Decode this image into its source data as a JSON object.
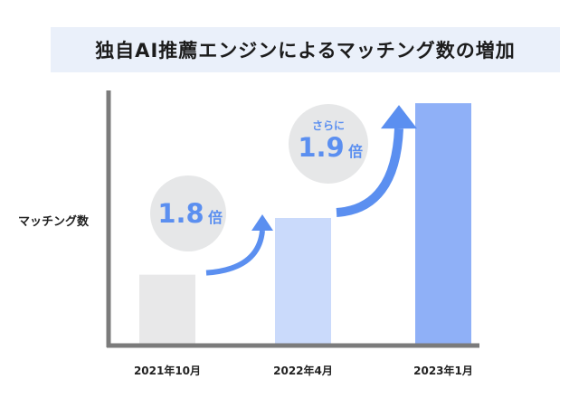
{
  "chart_data": {
    "type": "bar",
    "title": "独自AI推薦エンジンによるマッチング数の増加",
    "ylabel": "マッチング数",
    "xlabel": "",
    "categories": [
      "2021年10月",
      "2022年4月",
      "2023年1月"
    ],
    "values": [
      1.0,
      1.8,
      3.42
    ],
    "bar_colors": [
      "#e8e8e9",
      "#cadafb",
      "#8fb0f7"
    ],
    "ylim": [
      0,
      3.6
    ],
    "grid": false,
    "annotations": [
      {
        "from": 0,
        "to": 1,
        "prefix": "",
        "value": "1.8",
        "unit": "倍"
      },
      {
        "from": 1,
        "to": 2,
        "prefix": "さらに",
        "value": "1.9",
        "unit": "倍"
      }
    ],
    "arrow_color": "#5b8ff0",
    "bubble_color": "#e6e7e8",
    "axis_color": "#7b7b7b"
  }
}
